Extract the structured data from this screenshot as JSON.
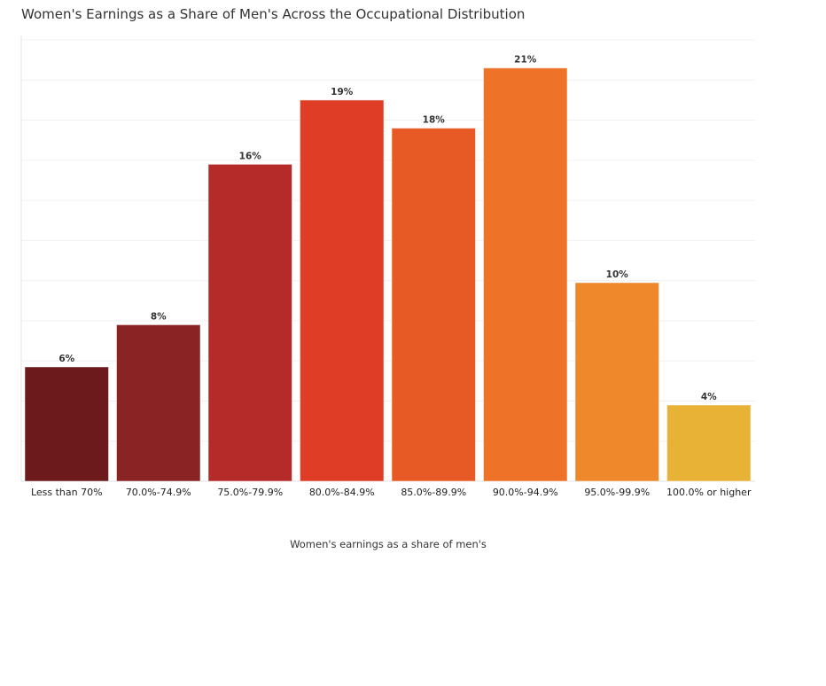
{
  "chart_data": {
    "type": "bar",
    "title": "Women's Earnings as a Share of Men's Across the Occupational Distribution",
    "xlabel": "Women's earnings as a share of men's",
    "ylabel": "",
    "ylim": [
      0,
      22
    ],
    "grid": true,
    "gridStep": 2,
    "categories": [
      "Less than 70%",
      "70.0%-74.9%",
      "75.0%-79.9%",
      "80.0%-84.9%",
      "85.0%-89.9%",
      "90.0%-94.9%",
      "95.0%-99.9%",
      "100.0% or higher"
    ],
    "values": [
      5.7,
      7.8,
      15.8,
      19.0,
      17.6,
      20.6,
      9.9,
      3.8
    ],
    "labels": [
      "6%",
      "8%",
      "16%",
      "19%",
      "18%",
      "21%",
      "10%",
      "4%"
    ],
    "colors": [
      "#6d1a1c",
      "#8a2323",
      "#b52b29",
      "#df3d26",
      "#e85a25",
      "#ee7228",
      "#ef882b",
      "#e8b236"
    ]
  }
}
